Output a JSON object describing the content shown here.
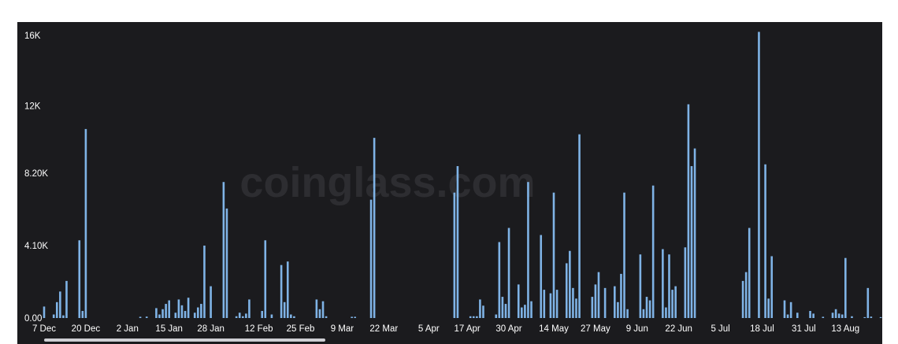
{
  "watermark": "coinglass.com",
  "colors": {
    "panel": "#1b1b1e",
    "bar": "#7fb3e6",
    "text": "#ffffff",
    "watermark": "#2d2d31"
  },
  "chart_data": {
    "type": "bar",
    "title": "",
    "xlabel": "",
    "ylabel": "",
    "x_start": "2023-12-07",
    "x_end": "2024-08-23",
    "ylim": [
      0,
      16400
    ],
    "grid": false,
    "y_ticks": [
      "0.00",
      "4.10K",
      "8.20K",
      "12K",
      "16K"
    ],
    "y_tick_values": [
      0,
      4100,
      8200,
      12000,
      16000
    ],
    "x_ticks": [
      "7 Dec",
      "20 Dec",
      "2 Jan",
      "15 Jan",
      "28 Jan",
      "12 Feb",
      "25 Feb",
      "9 Mar",
      "22 Mar",
      "5 Apr",
      "17 Apr",
      "30 Apr",
      "14 May",
      "27 May",
      "9 Jun",
      "22 Jun",
      "5 Jul",
      "18 Jul",
      "31 Jul",
      "13 Aug"
    ],
    "x_tick_dates": [
      "2023-12-07",
      "2023-12-20",
      "2024-01-02",
      "2024-01-15",
      "2024-01-28",
      "2024-02-12",
      "2024-02-25",
      "2024-03-09",
      "2024-03-22",
      "2024-04-05",
      "2024-04-17",
      "2024-04-30",
      "2024-05-14",
      "2024-05-27",
      "2024-06-09",
      "2024-06-22",
      "2024-07-05",
      "2024-07-18",
      "2024-07-31",
      "2024-08-13"
    ],
    "series": [
      {
        "values": [
          [
            "2023-12-07",
            650
          ],
          [
            "2023-12-10",
            200
          ],
          [
            "2023-12-11",
            900
          ],
          [
            "2023-12-12",
            1500
          ],
          [
            "2023-12-13",
            150
          ],
          [
            "2023-12-14",
            2100
          ],
          [
            "2023-12-18",
            4400
          ],
          [
            "2023-12-19",
            400
          ],
          [
            "2023-12-20",
            10700
          ],
          [
            "2024-01-06",
            70
          ],
          [
            "2024-01-08",
            80
          ],
          [
            "2024-01-11",
            560
          ],
          [
            "2024-01-12",
            200
          ],
          [
            "2024-01-13",
            500
          ],
          [
            "2024-01-14",
            800
          ],
          [
            "2024-01-15",
            1000
          ],
          [
            "2024-01-17",
            300
          ],
          [
            "2024-01-18",
            1050
          ],
          [
            "2024-01-19",
            720
          ],
          [
            "2024-01-20",
            400
          ],
          [
            "2024-01-21",
            1150
          ],
          [
            "2024-01-23",
            300
          ],
          [
            "2024-01-24",
            600
          ],
          [
            "2024-01-25",
            800
          ],
          [
            "2024-01-26",
            4100
          ],
          [
            "2024-01-28",
            1800
          ],
          [
            "2024-02-01",
            7700
          ],
          [
            "2024-02-02",
            6200
          ],
          [
            "2024-02-05",
            100
          ],
          [
            "2024-02-06",
            300
          ],
          [
            "2024-02-07",
            100
          ],
          [
            "2024-02-08",
            250
          ],
          [
            "2024-02-09",
            1050
          ],
          [
            "2024-02-13",
            400
          ],
          [
            "2024-02-14",
            4400
          ],
          [
            "2024-02-16",
            200
          ],
          [
            "2024-02-19",
            3000
          ],
          [
            "2024-02-20",
            900
          ],
          [
            "2024-02-21",
            3200
          ],
          [
            "2024-02-22",
            200
          ],
          [
            "2024-02-23",
            100
          ],
          [
            "2024-03-01",
            1050
          ],
          [
            "2024-03-02",
            500
          ],
          [
            "2024-03-03",
            950
          ],
          [
            "2024-03-04",
            100
          ],
          [
            "2024-03-12",
            70
          ],
          [
            "2024-03-13",
            70
          ],
          [
            "2024-03-18",
            6700
          ],
          [
            "2024-03-19",
            10200
          ],
          [
            "2024-04-13",
            7100
          ],
          [
            "2024-04-14",
            8600
          ],
          [
            "2024-04-18",
            100
          ],
          [
            "2024-04-19",
            100
          ],
          [
            "2024-04-20",
            100
          ],
          [
            "2024-04-21",
            1050
          ],
          [
            "2024-04-22",
            700
          ],
          [
            "2024-04-26",
            200
          ],
          [
            "2024-04-27",
            4300
          ],
          [
            "2024-04-28",
            1200
          ],
          [
            "2024-04-29",
            800
          ],
          [
            "2024-04-30",
            5100
          ],
          [
            "2024-05-03",
            1900
          ],
          [
            "2024-05-04",
            600
          ],
          [
            "2024-05-05",
            750
          ],
          [
            "2024-05-06",
            7700
          ],
          [
            "2024-05-07",
            950
          ],
          [
            "2024-05-10",
            4700
          ],
          [
            "2024-05-11",
            1600
          ],
          [
            "2024-05-13",
            1400
          ],
          [
            "2024-05-14",
            7100
          ],
          [
            "2024-05-15",
            1600
          ],
          [
            "2024-05-18",
            3100
          ],
          [
            "2024-05-19",
            3800
          ],
          [
            "2024-05-20",
            1700
          ],
          [
            "2024-05-21",
            1100
          ],
          [
            "2024-05-22",
            10400
          ],
          [
            "2024-05-26",
            1200
          ],
          [
            "2024-05-27",
            1900
          ],
          [
            "2024-05-28",
            2600
          ],
          [
            "2024-05-30",
            1700
          ],
          [
            "2024-06-02",
            1800
          ],
          [
            "2024-06-03",
            900
          ],
          [
            "2024-06-04",
            2500
          ],
          [
            "2024-06-05",
            7100
          ],
          [
            "2024-06-06",
            500
          ],
          [
            "2024-06-10",
            3600
          ],
          [
            "2024-06-11",
            500
          ],
          [
            "2024-06-12",
            1200
          ],
          [
            "2024-06-13",
            1000
          ],
          [
            "2024-06-14",
            7500
          ],
          [
            "2024-06-17",
            3900
          ],
          [
            "2024-06-18",
            600
          ],
          [
            "2024-06-19",
            3600
          ],
          [
            "2024-06-20",
            1600
          ],
          [
            "2024-06-21",
            1800
          ],
          [
            "2024-06-24",
            4000
          ],
          [
            "2024-06-25",
            12100
          ],
          [
            "2024-06-26",
            8600
          ],
          [
            "2024-06-27",
            9600
          ],
          [
            "2024-07-12",
            2100
          ],
          [
            "2024-07-13",
            2600
          ],
          [
            "2024-07-14",
            5100
          ],
          [
            "2024-07-17",
            16200
          ],
          [
            "2024-07-19",
            8700
          ],
          [
            "2024-07-20",
            1100
          ],
          [
            "2024-07-21",
            3500
          ],
          [
            "2024-07-25",
            1000
          ],
          [
            "2024-07-26",
            200
          ],
          [
            "2024-07-27",
            900
          ],
          [
            "2024-07-29",
            300
          ],
          [
            "2024-08-02",
            400
          ],
          [
            "2024-08-03",
            250
          ],
          [
            "2024-08-06",
            70
          ],
          [
            "2024-08-09",
            300
          ],
          [
            "2024-08-10",
            500
          ],
          [
            "2024-08-11",
            250
          ],
          [
            "2024-08-12",
            200
          ],
          [
            "2024-08-13",
            3400
          ],
          [
            "2024-08-15",
            100
          ],
          [
            "2024-08-19",
            50
          ],
          [
            "2024-08-20",
            1700
          ],
          [
            "2024-08-21",
            80
          ],
          [
            "2024-08-24",
            50
          ],
          [
            "2024-08-25",
            100
          ],
          [
            "2024-08-26",
            150
          ],
          [
            "2024-08-27",
            100
          ]
        ]
      }
    ]
  }
}
